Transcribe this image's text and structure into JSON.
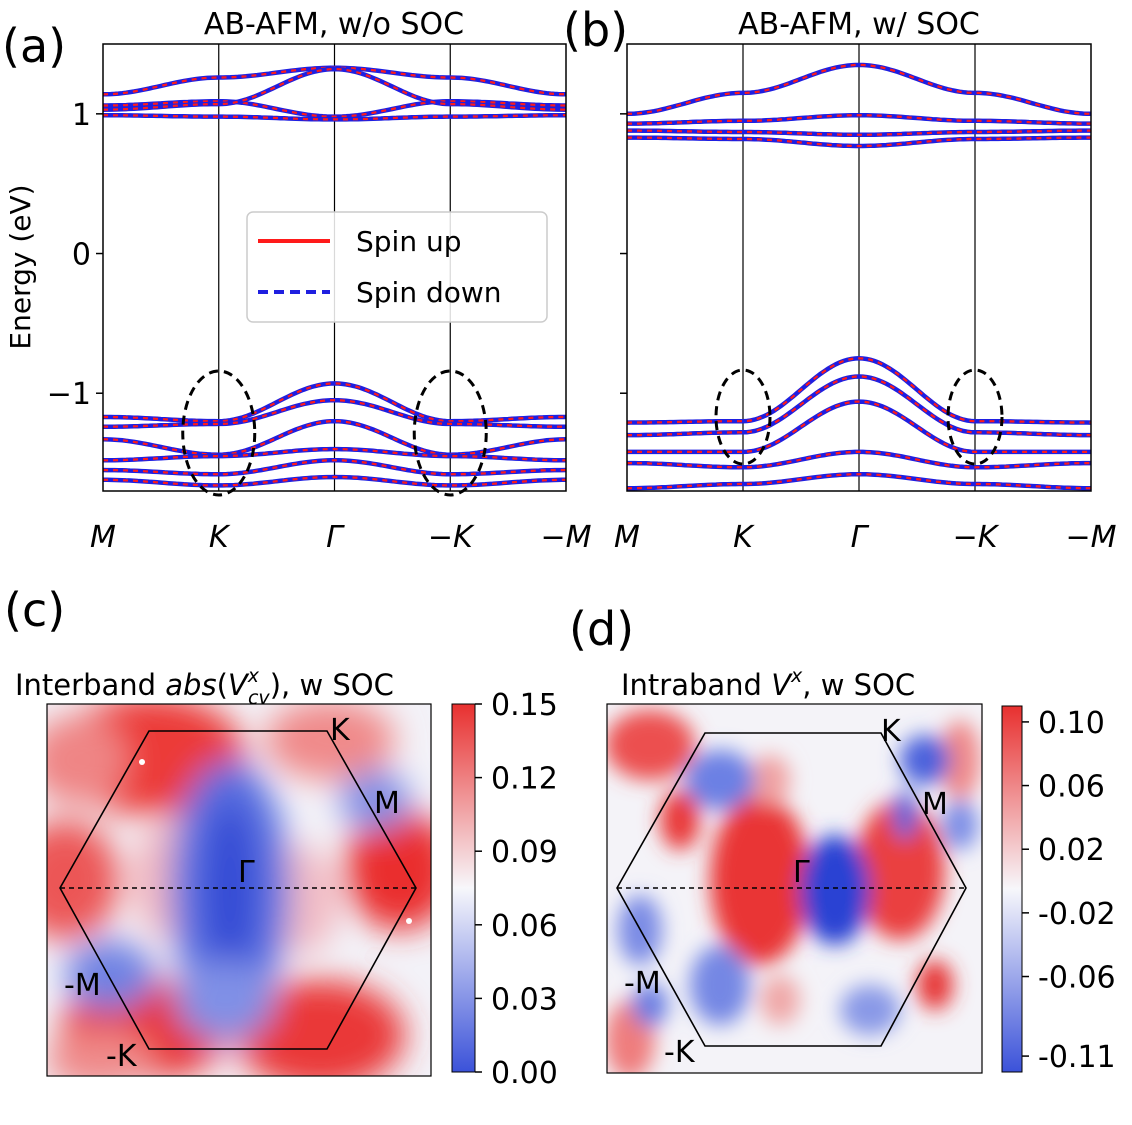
{
  "panels": {
    "a": {
      "label": "(a)",
      "title": "AB-AFM, w/o SOC"
    },
    "b": {
      "label": "(b)",
      "title": "AB-AFM, w/ SOC"
    },
    "c": {
      "label": "(c)",
      "title_pre": "Interband ",
      "title_fn": "abs",
      "title_V": "V",
      "title_sup": "x",
      "title_sub": "cv",
      "title_post": "), w SOC"
    },
    "d": {
      "label": "(d)",
      "title_pre": "Intraband ",
      "title_V": "V",
      "title_sup": "x",
      "title_post": ", w SOC"
    }
  },
  "colors": {
    "spin_up": "#ff1a1a",
    "spin_down": "#1f1fe0",
    "pos": "#e8302f",
    "neg": "#3b52d9"
  },
  "chart_data": [
    {
      "panel": "a",
      "type": "line",
      "title": "AB-AFM, w/o SOC",
      "ylabel": "Energy (eV)",
      "ylim": [
        -1.7,
        1.5
      ],
      "yticks": [
        "1",
        "0",
        "−1"
      ],
      "yticks_values": [
        1,
        0,
        -1
      ],
      "xticks": [
        "M",
        "K",
        "Γ",
        "−K",
        "−M"
      ],
      "x": [
        0,
        1,
        2,
        3,
        4
      ],
      "legend": {
        "entries": [
          "Spin up",
          "Spin down"
        ],
        "location": "center"
      },
      "series": [
        {
          "name": "cb1",
          "values": [
            1.14,
            1.26,
            1.33,
            1.26,
            1.14
          ]
        },
        {
          "name": "cb2",
          "values": [
            1.06,
            1.09,
            0.98,
            1.09,
            1.06
          ]
        },
        {
          "name": "cb3",
          "values": [
            1.03,
            1.07,
            1.32,
            1.07,
            1.03
          ]
        },
        {
          "name": "cb4",
          "values": [
            0.99,
            0.98,
            0.96,
            0.98,
            0.99
          ]
        },
        {
          "name": "vb1",
          "values": [
            -1.17,
            -1.2,
            -0.93,
            -1.2,
            -1.17
          ]
        },
        {
          "name": "vb2",
          "values": [
            -1.24,
            -1.22,
            -1.05,
            -1.22,
            -1.24
          ]
        },
        {
          "name": "vb3",
          "values": [
            -1.33,
            -1.44,
            -1.2,
            -1.44,
            -1.33
          ]
        },
        {
          "name": "vb4",
          "values": [
            -1.48,
            -1.45,
            -1.4,
            -1.45,
            -1.48
          ]
        },
        {
          "name": "vb5",
          "values": [
            -1.55,
            -1.58,
            -1.48,
            -1.58,
            -1.55
          ]
        },
        {
          "name": "vb6",
          "values": [
            -1.62,
            -1.66,
            -1.6,
            -1.66,
            -1.62
          ]
        }
      ],
      "ellipses_at": [
        "K",
        "−K"
      ]
    },
    {
      "panel": "b",
      "type": "line",
      "title": "AB-AFM, w/ SOC",
      "ylim": [
        -1.7,
        1.5
      ],
      "xticks": [
        "M",
        "K",
        "Γ",
        "−K",
        "−M"
      ],
      "x": [
        0,
        1,
        2,
        3,
        4
      ],
      "series": [
        {
          "name": "cb1",
          "values": [
            1.0,
            1.15,
            1.35,
            1.15,
            1.0
          ]
        },
        {
          "name": "cb2",
          "values": [
            0.93,
            0.95,
            0.99,
            0.95,
            0.93
          ]
        },
        {
          "name": "cb3",
          "values": [
            0.88,
            0.87,
            0.85,
            0.87,
            0.88
          ]
        },
        {
          "name": "cb4",
          "values": [
            0.83,
            0.82,
            0.77,
            0.82,
            0.83
          ]
        },
        {
          "name": "vb1",
          "values": [
            -1.21,
            -1.2,
            -0.75,
            -1.2,
            -1.21
          ]
        },
        {
          "name": "vb2",
          "values": [
            -1.3,
            -1.28,
            -0.88,
            -1.28,
            -1.3
          ]
        },
        {
          "name": "vb3",
          "values": [
            -1.42,
            -1.42,
            -1.06,
            -1.42,
            -1.42
          ]
        },
        {
          "name": "vb4",
          "values": [
            -1.5,
            -1.53,
            -1.42,
            -1.53,
            -1.5
          ]
        },
        {
          "name": "vb5",
          "values": [
            -1.68,
            -1.65,
            -1.58,
            -1.65,
            -1.68
          ]
        }
      ],
      "ellipses_at": [
        "K",
        "−K"
      ]
    },
    {
      "panel": "c",
      "type": "heatmap",
      "title": "Interband abs(V^x_cv), w SOC",
      "colorbar": {
        "min": 0.0,
        "max": 0.15,
        "ticks": [
          "0.15",
          "0.12",
          "0.09",
          "0.06",
          "0.03",
          "0.00"
        ],
        "tick_values": [
          0.15,
          0.12,
          0.09,
          0.06,
          0.03,
          0.0
        ]
      },
      "bz_labels": [
        "K",
        "M",
        "Γ",
        "-M",
        "-K"
      ]
    },
    {
      "panel": "d",
      "type": "heatmap",
      "title": "Intraband V^x, w SOC",
      "colorbar": {
        "min": -0.12,
        "max": 0.11,
        "ticks": [
          "0.10",
          "0.06",
          "0.02",
          "-0.02",
          "-0.06",
          "-0.11"
        ],
        "tick_values": [
          0.1,
          0.06,
          0.02,
          -0.02,
          -0.06,
          -0.11
        ]
      },
      "bz_labels": [
        "K",
        "M",
        "Γ",
        "-M",
        "-K"
      ]
    }
  ]
}
